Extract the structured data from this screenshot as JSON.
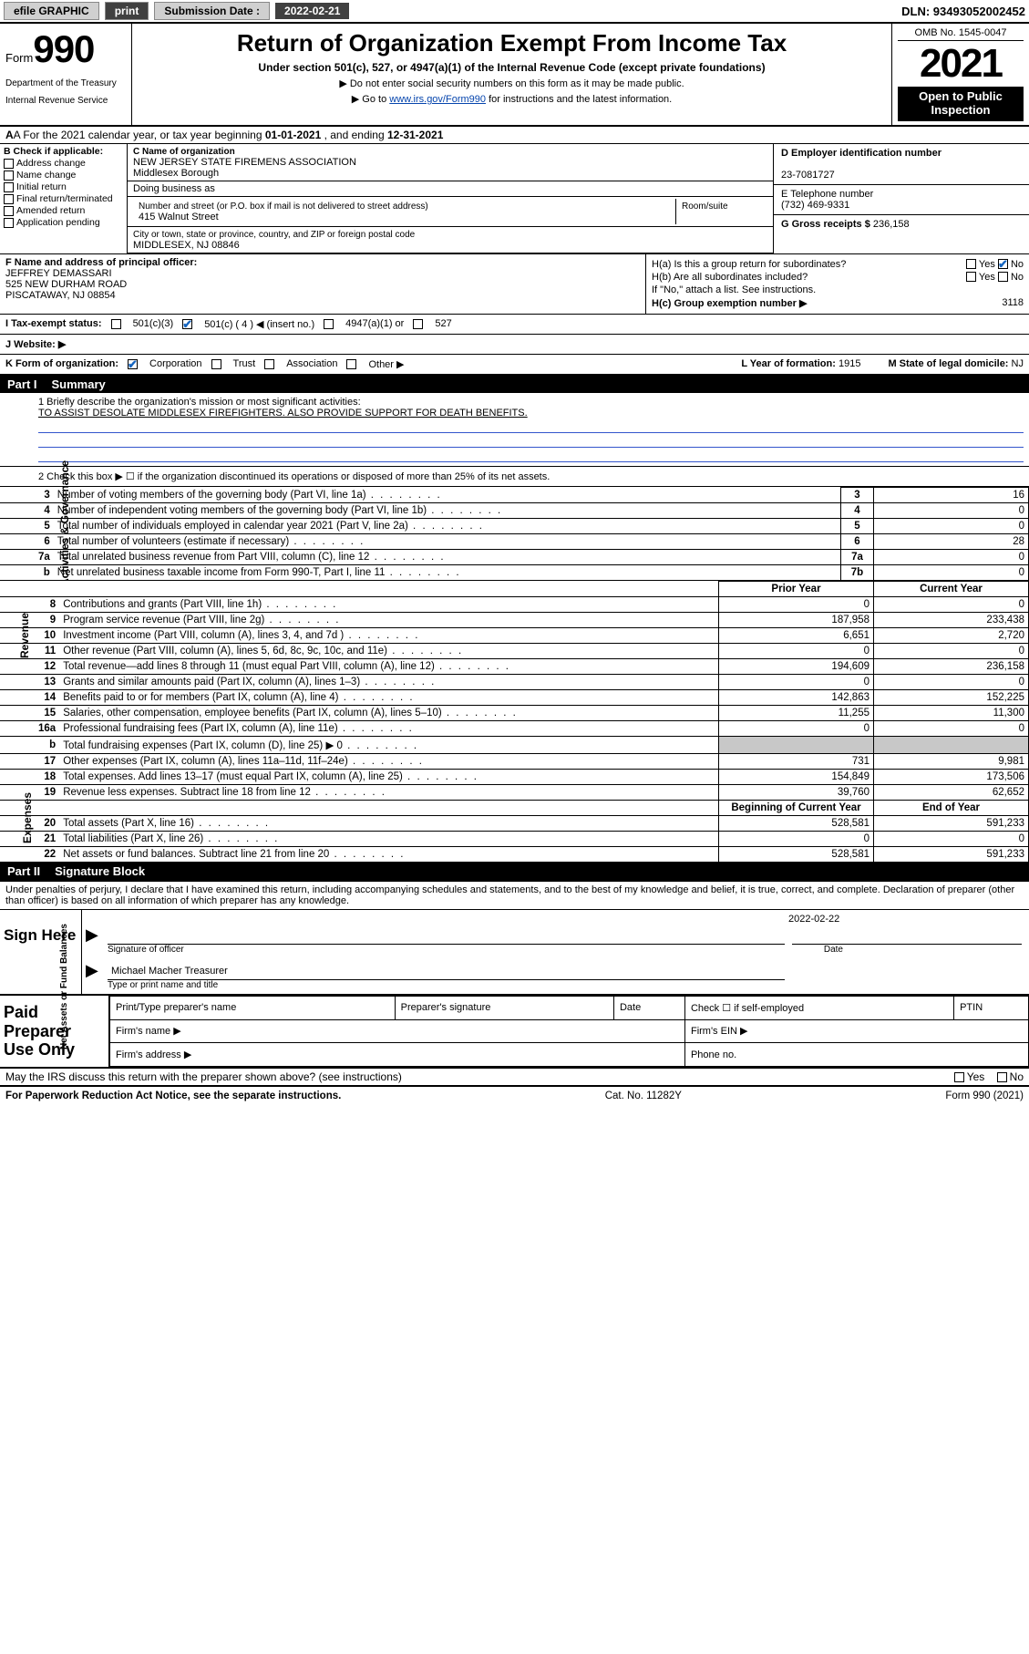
{
  "topbar": {
    "efile": "efile GRAPHIC",
    "print": "print",
    "sub_label": "Submission Date :",
    "sub_date": "2022-02-21",
    "dln": "DLN: 93493052002452"
  },
  "header": {
    "form_prefix": "Form",
    "form_no": "990",
    "agency1": "Department of the Treasury",
    "agency2": "Internal Revenue Service",
    "title": "Return of Organization Exempt From Income Tax",
    "sub1": "Under section 501(c), 527, or 4947(a)(1) of the Internal Revenue Code (except private foundations)",
    "note1": "▶ Do not enter social security numbers on this form as it may be made public.",
    "note2_a": "▶ Go to ",
    "note2_link": "www.irs.gov/Form990",
    "note2_b": " for instructions and the latest information.",
    "omb": "OMB No. 1545-0047",
    "year": "2021",
    "open1": "Open to Public",
    "open2": "Inspection"
  },
  "rowA": {
    "text_a": "A For the 2021 calendar year, or tax year beginning ",
    "begin": "01-01-2021",
    "mid": " , and ending ",
    "end": "12-31-2021"
  },
  "colB": {
    "hdr": "B Check if applicable:",
    "opts": [
      "Address change",
      "Name change",
      "Initial return",
      "Final return/terminated",
      "Amended return",
      "Application pending"
    ]
  },
  "colC": {
    "name_lbl": "C Name of organization",
    "name1": "NEW JERSEY STATE FIREMENS ASSOCIATION",
    "name2": "Middlesex Borough",
    "dba_lbl": "Doing business as",
    "addr_lbl": "Number and street (or P.O. box if mail is not delivered to street address)",
    "suite_lbl": "Room/suite",
    "addr": "415 Walnut Street",
    "city_lbl": "City or town, state or province, country, and ZIP or foreign postal code",
    "city": "MIDDLESEX, NJ  08846"
  },
  "colD": {
    "ein_lbl": "D Employer identification number",
    "ein": "23-7081727",
    "tel_lbl": "E Telephone number",
    "tel": "(732) 469-9331",
    "gross_lbl": "G Gross receipts $",
    "gross": "236,158"
  },
  "blockF": {
    "lbl": "F Name and address of principal officer:",
    "l1": "JEFFREY DEMASSARI",
    "l2": "525 NEW DURHAM ROAD",
    "l3": "PISCATAWAY, NJ  08854"
  },
  "blockH": {
    "ha": "H(a)  Is this a group return for subordinates?",
    "hb": "H(b)  Are all subordinates included?",
    "hnote": "If \"No,\" attach a list. See instructions.",
    "hc_lbl": "H(c)  Group exemption number ▶",
    "hc_val": "3118",
    "yes": "Yes",
    "no": "No"
  },
  "rowI": {
    "lbl": "I   Tax-exempt status:",
    "o1": "501(c)(3)",
    "o2": "501(c) ( 4 ) ◀ (insert no.)",
    "o3": "4947(a)(1) or",
    "o4": "527"
  },
  "rowJ": {
    "lbl": "J   Website: ▶"
  },
  "rowK": {
    "lbl": "K Form of organization:",
    "o1": "Corporation",
    "o2": "Trust",
    "o3": "Association",
    "o4": "Other ▶",
    "year_lbl": "L Year of formation:",
    "year": "1915",
    "dom_lbl": "M State of legal domicile:",
    "dom": "NJ"
  },
  "part1": {
    "part": "Part I",
    "title": "Summary"
  },
  "mission": {
    "lbl": "1   Briefly describe the organization's mission or most significant activities:",
    "text": "TO ASSIST DESOLATE MIDDLESEX FIREFIGHTERS. ALSO PROVIDE SUPPORT FOR DEATH BENEFITS."
  },
  "gov": {
    "vlabel": "Activities & Governance",
    "l2": "2   Check this box ▶ ☐  if the organization discontinued its operations or disposed of more than 25% of its net assets.",
    "rows": [
      {
        "n": "3",
        "t": "Number of voting members of the governing body (Part VI, line 1a)",
        "box": "3",
        "v": "16"
      },
      {
        "n": "4",
        "t": "Number of independent voting members of the governing body (Part VI, line 1b)",
        "box": "4",
        "v": "0"
      },
      {
        "n": "5",
        "t": "Total number of individuals employed in calendar year 2021 (Part V, line 2a)",
        "box": "5",
        "v": "0"
      },
      {
        "n": "6",
        "t": "Total number of volunteers (estimate if necessary)",
        "box": "6",
        "v": "28"
      },
      {
        "n": "7a",
        "t": "Total unrelated business revenue from Part VIII, column (C), line 12",
        "box": "7a",
        "v": "0"
      },
      {
        "n": "b",
        "t": "Net unrelated business taxable income from Form 990-T, Part I, line 11",
        "box": "7b",
        "v": "0"
      }
    ]
  },
  "revexp": {
    "hdr_prior": "Prior Year",
    "hdr_curr": "Current Year",
    "rev_label": "Revenue",
    "exp_label": "Expenses",
    "net_label": "Net Assets or Fund Balances",
    "rows": [
      {
        "n": "8",
        "t": "Contributions and grants (Part VIII, line 1h)",
        "p": "0",
        "c": "0"
      },
      {
        "n": "9",
        "t": "Program service revenue (Part VIII, line 2g)",
        "p": "187,958",
        "c": "233,438"
      },
      {
        "n": "10",
        "t": "Investment income (Part VIII, column (A), lines 3, 4, and 7d )",
        "p": "6,651",
        "c": "2,720"
      },
      {
        "n": "11",
        "t": "Other revenue (Part VIII, column (A), lines 5, 6d, 8c, 9c, 10c, and 11e)",
        "p": "0",
        "c": "0"
      },
      {
        "n": "12",
        "t": "Total revenue—add lines 8 through 11 (must equal Part VIII, column (A), line 12)",
        "p": "194,609",
        "c": "236,158"
      },
      {
        "n": "13",
        "t": "Grants and similar amounts paid (Part IX, column (A), lines 1–3)",
        "p": "0",
        "c": "0"
      },
      {
        "n": "14",
        "t": "Benefits paid to or for members (Part IX, column (A), line 4)",
        "p": "142,863",
        "c": "152,225"
      },
      {
        "n": "15",
        "t": "Salaries, other compensation, employee benefits (Part IX, column (A), lines 5–10)",
        "p": "11,255",
        "c": "11,300"
      },
      {
        "n": "16a",
        "t": "Professional fundraising fees (Part IX, column (A), line 11e)",
        "p": "0",
        "c": "0"
      },
      {
        "n": "b",
        "t": "Total fundraising expenses (Part IX, column (D), line 25) ▶ 0",
        "p": "",
        "c": "",
        "shade": true
      },
      {
        "n": "17",
        "t": "Other expenses (Part IX, column (A), lines 11a–11d, 11f–24e)",
        "p": "731",
        "c": "9,981"
      },
      {
        "n": "18",
        "t": "Total expenses. Add lines 13–17 (must equal Part IX, column (A), line 25)",
        "p": "154,849",
        "c": "173,506"
      },
      {
        "n": "19",
        "t": "Revenue less expenses. Subtract line 18 from line 12",
        "p": "39,760",
        "c": "62,652"
      }
    ],
    "net_hdr_prior": "Beginning of Current Year",
    "net_hdr_curr": "End of Year",
    "netrows": [
      {
        "n": "20",
        "t": "Total assets (Part X, line 16)",
        "p": "528,581",
        "c": "591,233"
      },
      {
        "n": "21",
        "t": "Total liabilities (Part X, line 26)",
        "p": "0",
        "c": "0"
      },
      {
        "n": "22",
        "t": "Net assets or fund balances. Subtract line 21 from line 20",
        "p": "528,581",
        "c": "591,233"
      }
    ]
  },
  "part2": {
    "part": "Part II",
    "title": "Signature Block"
  },
  "sig": {
    "decl": "Under penalties of perjury, I declare that I have examined this return, including accompanying schedules and statements, and to the best of my knowledge and belief, it is true, correct, and complete. Declaration of preparer (other than officer) is based on all information of which preparer has any knowledge.",
    "sign_here": "Sign Here",
    "sig_of_officer": "Signature of officer",
    "date_lbl": "Date",
    "date": "2022-02-22",
    "name": "Michael Macher  Treasurer",
    "name_lbl": "Type or print name and title"
  },
  "prep": {
    "side": "Paid Preparer Use Only",
    "c1": "Print/Type preparer's name",
    "c2": "Preparer's signature",
    "c3": "Date",
    "c4a": "Check ☐ if self-employed",
    "c5": "PTIN",
    "firm_name": "Firm's name   ▶",
    "firm_ein": "Firm's EIN ▶",
    "firm_addr": "Firm's address ▶",
    "phone": "Phone no."
  },
  "discuss": {
    "q": "May the IRS discuss this return with the preparer shown above? (see instructions)",
    "yes": "Yes",
    "no": "No"
  },
  "footer": {
    "left": "For Paperwork Reduction Act Notice, see the separate instructions.",
    "mid": "Cat. No. 11282Y",
    "right": "Form 990 (2021)"
  },
  "colors": {
    "link": "#0645ad",
    "checkmark": "#1565c0",
    "ruled_line": "#3355cc",
    "shade": "#c8c8c8"
  }
}
